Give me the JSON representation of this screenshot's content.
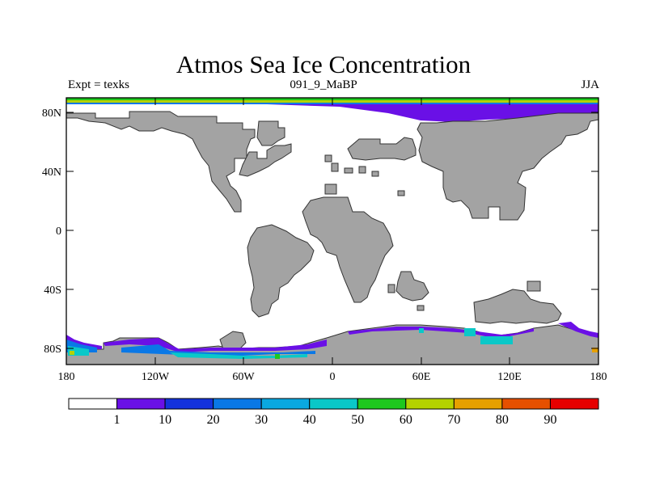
{
  "title": "Atmos Sea Ice Concentration",
  "subtitle_left": "Expt = texks",
  "subtitle_center": "091_9_MaBP",
  "subtitle_right": "JJA",
  "lat_labels": [
    "80N",
    "40N",
    "0",
    "40S",
    "80S"
  ],
  "lon_labels": [
    "180",
    "120W",
    "60W",
    "0",
    "60E",
    "120E",
    "180"
  ],
  "colorbar": {
    "labels": [
      "1",
      "10",
      "20",
      "30",
      "40",
      "50",
      "60",
      "70",
      "80",
      "90"
    ],
    "colors": [
      "#ffffff",
      "#6a10e6",
      "#1432dc",
      "#0a78e6",
      "#0aa8e0",
      "#0ac8c8",
      "#1ec81e",
      "#b4d200",
      "#e6a000",
      "#e65000",
      "#e60000"
    ]
  },
  "colors": {
    "land": "#a3a3a3",
    "ice_primary": "#6a10e6"
  }
}
